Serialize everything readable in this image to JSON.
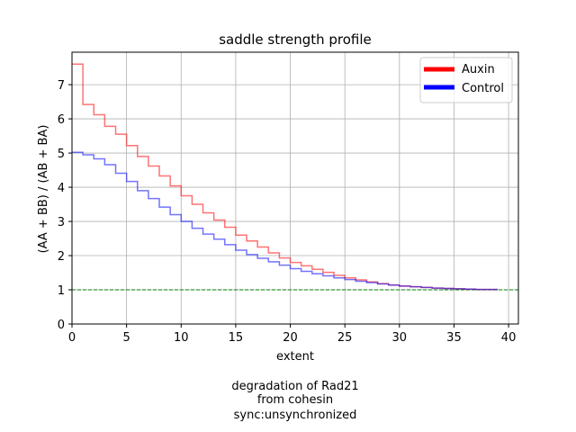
{
  "chart_data": {
    "type": "line",
    "title": "saddle strength profile",
    "xlabel": "extent",
    "ylabel": "(AA + BB) / (AB + BA)",
    "xlim": [
      0,
      40.9
    ],
    "ylim": [
      0,
      7.95
    ],
    "xticks": [
      0,
      5,
      10,
      15,
      20,
      25,
      30,
      35,
      40
    ],
    "yticks": [
      0,
      1,
      2,
      3,
      4,
      5,
      6,
      7
    ],
    "grid": true,
    "legend_position": "top-right",
    "reference_line": {
      "y": 1,
      "color": "#008000",
      "style": "dashed"
    },
    "step": true,
    "series": [
      {
        "name": "Auxin",
        "color": "#ff0000",
        "values": [
          7.6,
          6.42,
          6.12,
          5.78,
          5.55,
          5.22,
          4.9,
          4.62,
          4.33,
          4.04,
          3.75,
          3.5,
          3.25,
          3.04,
          2.83,
          2.6,
          2.43,
          2.25,
          2.08,
          1.93,
          1.8,
          1.7,
          1.6,
          1.51,
          1.42,
          1.35,
          1.29,
          1.23,
          1.18,
          1.14,
          1.11,
          1.09,
          1.07,
          1.05,
          1.04,
          1.03,
          1.02,
          1.01,
          1.01
        ]
      },
      {
        "name": "Control",
        "color": "#0000ff",
        "values": [
          5.02,
          4.95,
          4.83,
          4.66,
          4.41,
          4.17,
          3.9,
          3.67,
          3.42,
          3.2,
          3.0,
          2.8,
          2.63,
          2.48,
          2.32,
          2.16,
          2.03,
          1.92,
          1.82,
          1.72,
          1.62,
          1.54,
          1.47,
          1.41,
          1.35,
          1.3,
          1.25,
          1.21,
          1.17,
          1.14,
          1.11,
          1.09,
          1.07,
          1.05,
          1.04,
          1.03,
          1.02,
          1.01,
          1.01
        ]
      }
    ]
  },
  "caption": {
    "line1": "degradation of Rad21",
    "line2": "from cohesin",
    "line3": "sync:unsynchronized"
  }
}
